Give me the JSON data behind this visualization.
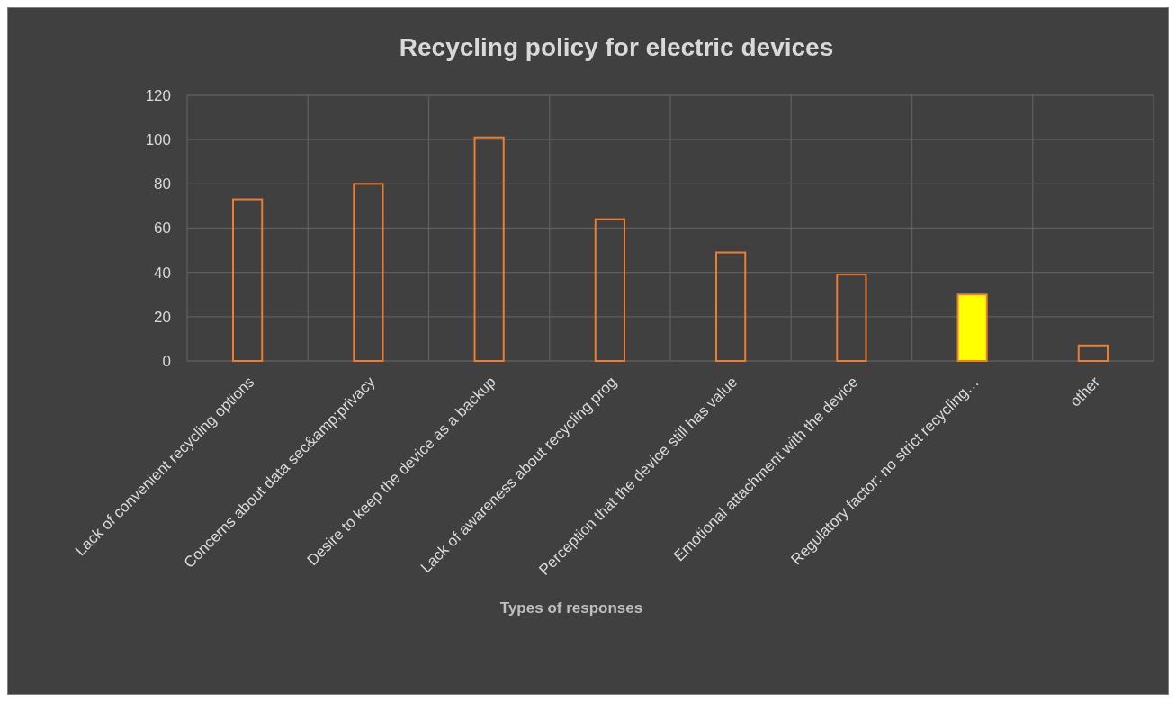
{
  "chart_data": {
    "type": "bar",
    "title": "Recycling policy for electric devices",
    "xlabel": "Types of responses",
    "categories": [
      "Lack of convenient recycling options",
      "Concerns about data sec&amp;privacy",
      "Desire to keep the device as a backup",
      "Lack of awareness about recycling prog",
      "Perception that the device still has value",
      "Emotional attachment with the device",
      "Regulatory factor: no strict recycling…",
      "other"
    ],
    "values": [
      73,
      80,
      101,
      64,
      49,
      39,
      30,
      7
    ],
    "colors": [
      "#ed7d31",
      "#ed7d31",
      "#ed7d31",
      "#ed7d31",
      "#ed7d31",
      "#ed7d31",
      "#ffff00",
      "#ed7d31"
    ],
    "ylim": [
      0,
      120
    ],
    "yticks": [
      0,
      20,
      40,
      60,
      80,
      100,
      120
    ],
    "grid": true
  }
}
